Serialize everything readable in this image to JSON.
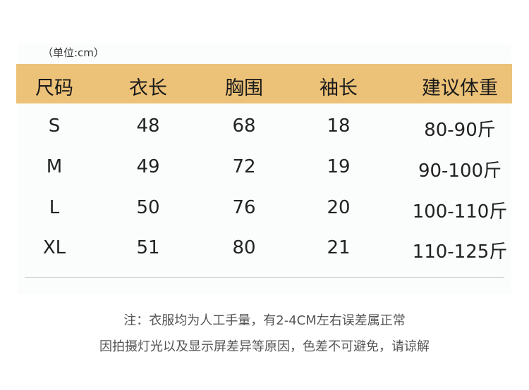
{
  "unit_label": "（单位:cm）",
  "table": {
    "headers": [
      "尺码",
      "衣长",
      "胸围",
      "袖长",
      "建议体重"
    ],
    "rows": [
      [
        "S",
        "48",
        "68",
        "18",
        "80-90斤"
      ],
      [
        "M",
        "49",
        "72",
        "19",
        "90-100斤"
      ],
      [
        "L",
        "50",
        "76",
        "20",
        "100-110斤"
      ],
      [
        "XL",
        "51",
        "80",
        "21",
        "110-125斤"
      ]
    ]
  },
  "notes": [
    "注：衣服均为人工手量，有2-4CM左右误差属正常",
    "因拍摄灯光以及显示屏差异等原因，色差不可避免，请谅解"
  ],
  "colors": {
    "header_bg": "#ecc278"
  }
}
